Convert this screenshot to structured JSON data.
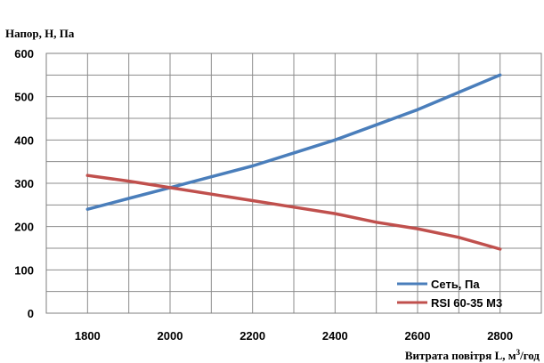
{
  "chart_data": {
    "type": "line",
    "title": "",
    "ylabel": "Напор, Н, Па",
    "xlabel_prefix": "Витрата повітря L, м",
    "xlabel_sup": "3",
    "xlabel_suffix": "/год",
    "xlim": [
      1700,
      2900
    ],
    "ylim": [
      0,
      600
    ],
    "x_ticks": [
      "1800",
      "2000",
      "2200",
      "2400",
      "2600",
      "2800"
    ],
    "y_ticks": [
      "0",
      "100",
      "200",
      "300",
      "400",
      "500",
      "600"
    ],
    "x_grid_step": 100,
    "y_grid_step": 50,
    "grid": true,
    "legend_position": "bottom-right",
    "series": [
      {
        "name": "Сеть, Па",
        "color": "#4a7ebb",
        "x": [
          1800,
          1900,
          2000,
          2100,
          2200,
          2300,
          2400,
          2500,
          2600,
          2700,
          2800
        ],
        "y": [
          240,
          265,
          290,
          315,
          340,
          370,
          400,
          435,
          470,
          510,
          550
        ]
      },
      {
        "name": "RSI 60-35  М3",
        "color": "#c0504d",
        "x": [
          1800,
          1900,
          2000,
          2100,
          2200,
          2300,
          2400,
          2500,
          2600,
          2700,
          2800
        ],
        "y": [
          318,
          305,
          290,
          275,
          260,
          245,
          230,
          210,
          195,
          175,
          148
        ]
      }
    ]
  }
}
